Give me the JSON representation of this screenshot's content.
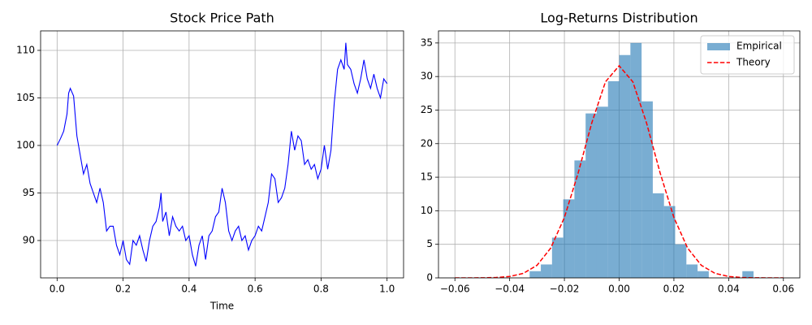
{
  "chart_data": [
    {
      "type": "line",
      "title": "Stock Price Path",
      "xlabel": "Time",
      "color": "#0000ff",
      "grid": true,
      "x": [
        0,
        0.01,
        0.02,
        0.03,
        0.035,
        0.04,
        0.05,
        0.06,
        0.07,
        0.08,
        0.09,
        0.1,
        0.11,
        0.12,
        0.13,
        0.14,
        0.15,
        0.16,
        0.17,
        0.18,
        0.19,
        0.2,
        0.21,
        0.22,
        0.23,
        0.24,
        0.25,
        0.26,
        0.27,
        0.28,
        0.29,
        0.3,
        0.31,
        0.315,
        0.32,
        0.33,
        0.34,
        0.35,
        0.36,
        0.37,
        0.38,
        0.39,
        0.4,
        0.41,
        0.42,
        0.43,
        0.44,
        0.45,
        0.46,
        0.47,
        0.48,
        0.49,
        0.5,
        0.51,
        0.52,
        0.53,
        0.54,
        0.55,
        0.56,
        0.57,
        0.58,
        0.59,
        0.6,
        0.61,
        0.62,
        0.63,
        0.64,
        0.65,
        0.66,
        0.67,
        0.68,
        0.69,
        0.7,
        0.71,
        0.72,
        0.73,
        0.74,
        0.75,
        0.76,
        0.77,
        0.78,
        0.79,
        0.8,
        0.81,
        0.82,
        0.83,
        0.84,
        0.85,
        0.86,
        0.87,
        0.875,
        0.88,
        0.89,
        0.9,
        0.91,
        0.92,
        0.93,
        0.94,
        0.95,
        0.96,
        0.97,
        0.98,
        0.99,
        1
      ],
      "values": [
        100,
        100.7,
        101.5,
        103.3,
        105.5,
        106,
        105.2,
        101,
        99,
        97,
        98,
        96,
        95,
        94,
        95.5,
        94,
        91,
        91.5,
        91.5,
        89.5,
        88.5,
        90,
        88,
        87.5,
        90,
        89.5,
        90.5,
        89,
        87.8,
        90,
        91.5,
        92,
        93.5,
        95,
        92,
        93,
        90.5,
        92.5,
        91.5,
        91,
        91.5,
        90,
        90.5,
        88.5,
        87.3,
        89.5,
        90.5,
        88,
        90.5,
        91,
        92.5,
        93,
        95.5,
        94,
        91,
        90,
        91,
        91.5,
        90,
        90.5,
        89,
        90,
        90.5,
        91.5,
        91,
        92.5,
        94,
        97,
        96.5,
        94,
        94.5,
        95.5,
        98,
        101.5,
        99.5,
        101,
        100.5,
        98,
        98.5,
        97.5,
        98,
        96.5,
        97.5,
        100,
        97.5,
        99.5,
        104.5,
        108,
        109,
        108,
        110.8,
        108.5,
        108,
        106.5,
        105.5,
        107,
        109,
        107,
        106,
        107.5,
        106,
        105,
        107,
        106.5
      ],
      "xlim": [
        -0.05,
        1.05
      ],
      "ylim": [
        86.07,
        112.05
      ],
      "xticks": [
        {
          "value": 0,
          "label": "0.0"
        },
        0.2,
        0.4,
        0.6,
        0.8,
        {
          "value": 1,
          "label": "1.0"
        }
      ],
      "yticks": [
        90,
        95,
        100,
        105,
        110
      ]
    },
    {
      "type": "histogram",
      "title": "Log-Returns Distribution",
      "grid": true,
      "legend": "upper right",
      "bins": [
        -0.0327,
        -0.02861,
        -0.02452,
        -0.02043,
        -0.01634,
        -0.01225,
        -0.00816,
        -0.00407,
        2e-05,
        0.00411,
        0.0082,
        0.01229,
        0.01638,
        0.02047,
        0.02456,
        0.02865,
        0.03274,
        0.03683,
        0.04092,
        0.04501,
        0.0491
      ],
      "series": [
        {
          "name": "Empirical",
          "type": "histogram",
          "color": "#1f77b4",
          "opacity": 0.6,
          "values": [
            1,
            2,
            6,
            11.7,
            17.5,
            24.5,
            25.5,
            29.3,
            33.2,
            35,
            26.3,
            12.6,
            10.7,
            5,
            2,
            1,
            0,
            0,
            0,
            1
          ]
        },
        {
          "name": "Theory",
          "type": "line",
          "color": "#ff0000",
          "dashed": true,
          "x": [
            -0.06,
            -0.055,
            -0.05,
            -0.045,
            -0.04,
            -0.035,
            -0.03,
            -0.025,
            -0.02,
            -0.015,
            -0.01,
            -0.005,
            0,
            0.005,
            0.01,
            0.015,
            0.02,
            0.025,
            0.03,
            0.035,
            0.04,
            0.045,
            0.05,
            0.055,
            0.06
          ],
          "values": [
            0.0004,
            0.0022,
            0.012,
            0.055,
            0.208,
            0.676,
            1.875,
            4.44,
            9.0,
            15.59,
            23.09,
            29.21,
            31.6,
            29.21,
            23.09,
            15.59,
            9.0,
            4.44,
            1.875,
            0.676,
            0.208,
            0.055,
            0.012,
            0.0022,
            0.0004
          ]
        }
      ],
      "xlim": [
        -0.066,
        0.066
      ],
      "ylim": [
        0,
        36.8
      ],
      "xticks": [
        {
          "value": -0.06,
          "label": "−0.06"
        },
        {
          "value": -0.04,
          "label": "−0.04"
        },
        {
          "value": -0.02,
          "label": "−0.02"
        },
        {
          "value": 0,
          "label": "0.00"
        },
        0.02,
        0.04,
        0.06
      ],
      "yticks": [
        0,
        5,
        10,
        15,
        20,
        25,
        30,
        35
      ]
    }
  ]
}
